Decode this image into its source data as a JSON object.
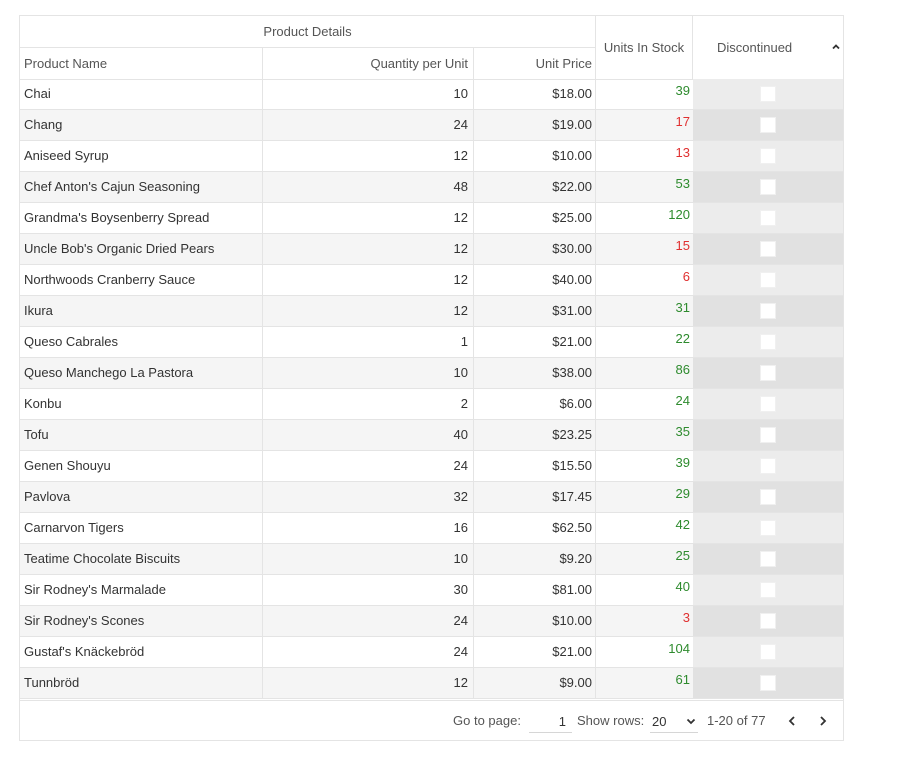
{
  "grid": {
    "group_header": "Product Details",
    "columns": {
      "name": "Product Name",
      "quantity": "Quantity per Unit",
      "price": "Unit Price",
      "stock": "Units In Stock",
      "discontinued": "Discontinued"
    },
    "sort_icon": "chevron-up-icon",
    "rows": [
      {
        "name": "Chai",
        "qty": "10",
        "price": "$18.00",
        "stock": "39",
        "status": "good"
      },
      {
        "name": "Chang",
        "qty": "24",
        "price": "$19.00",
        "stock": "17",
        "status": "bad"
      },
      {
        "name": "Aniseed Syrup",
        "qty": "12",
        "price": "$10.00",
        "stock": "13",
        "status": "bad"
      },
      {
        "name": "Chef Anton's Cajun Seasoning",
        "qty": "48",
        "price": "$22.00",
        "stock": "53",
        "status": "good"
      },
      {
        "name": "Grandma's Boysenberry Spread",
        "qty": "12",
        "price": "$25.00",
        "stock": "120",
        "status": "good"
      },
      {
        "name": "Uncle Bob's Organic Dried Pears",
        "qty": "12",
        "price": "$30.00",
        "stock": "15",
        "status": "bad"
      },
      {
        "name": "Northwoods Cranberry Sauce",
        "qty": "12",
        "price": "$40.00",
        "stock": "6",
        "status": "bad"
      },
      {
        "name": "Ikura",
        "qty": "12",
        "price": "$31.00",
        "stock": "31",
        "status": "good"
      },
      {
        "name": "Queso Cabrales",
        "qty": "1",
        "price": "$21.00",
        "stock": "22",
        "status": "good"
      },
      {
        "name": "Queso Manchego La Pastora",
        "qty": "10",
        "price": "$38.00",
        "stock": "86",
        "status": "good"
      },
      {
        "name": "Konbu",
        "qty": "2",
        "price": "$6.00",
        "stock": "24",
        "status": "good"
      },
      {
        "name": "Tofu",
        "qty": "40",
        "price": "$23.25",
        "stock": "35",
        "status": "good"
      },
      {
        "name": "Genen Shouyu",
        "qty": "24",
        "price": "$15.50",
        "stock": "39",
        "status": "good"
      },
      {
        "name": "Pavlova",
        "qty": "32",
        "price": "$17.45",
        "stock": "29",
        "status": "good"
      },
      {
        "name": "Carnarvon Tigers",
        "qty": "16",
        "price": "$62.50",
        "stock": "42",
        "status": "good"
      },
      {
        "name": "Teatime Chocolate Biscuits",
        "qty": "10",
        "price": "$9.20",
        "stock": "25",
        "status": "good"
      },
      {
        "name": "Sir Rodney's Marmalade",
        "qty": "30",
        "price": "$81.00",
        "stock": "40",
        "status": "good"
      },
      {
        "name": "Sir Rodney's Scones",
        "qty": "24",
        "price": "$10.00",
        "stock": "3",
        "status": "bad"
      },
      {
        "name": "Gustaf's Knäckebröd",
        "qty": "24",
        "price": "$21.00",
        "stock": "104",
        "status": "good"
      },
      {
        "name": "Tunnbröd",
        "qty": "12",
        "price": "$9.00",
        "stock": "61",
        "status": "good"
      }
    ]
  },
  "pager": {
    "go_to_label": "Go to page:",
    "page_value": "1",
    "show_rows_label": "Show rows:",
    "rows_value": "20",
    "range_text": "1-20 of 77",
    "prev_icon": "chevron-left-icon",
    "next_icon": "chevron-right-icon"
  },
  "colors": {
    "good": "#2e8b2e",
    "bad": "#e03030",
    "border": "#e4e4e4",
    "alt_row": "#f5f5f5"
  }
}
